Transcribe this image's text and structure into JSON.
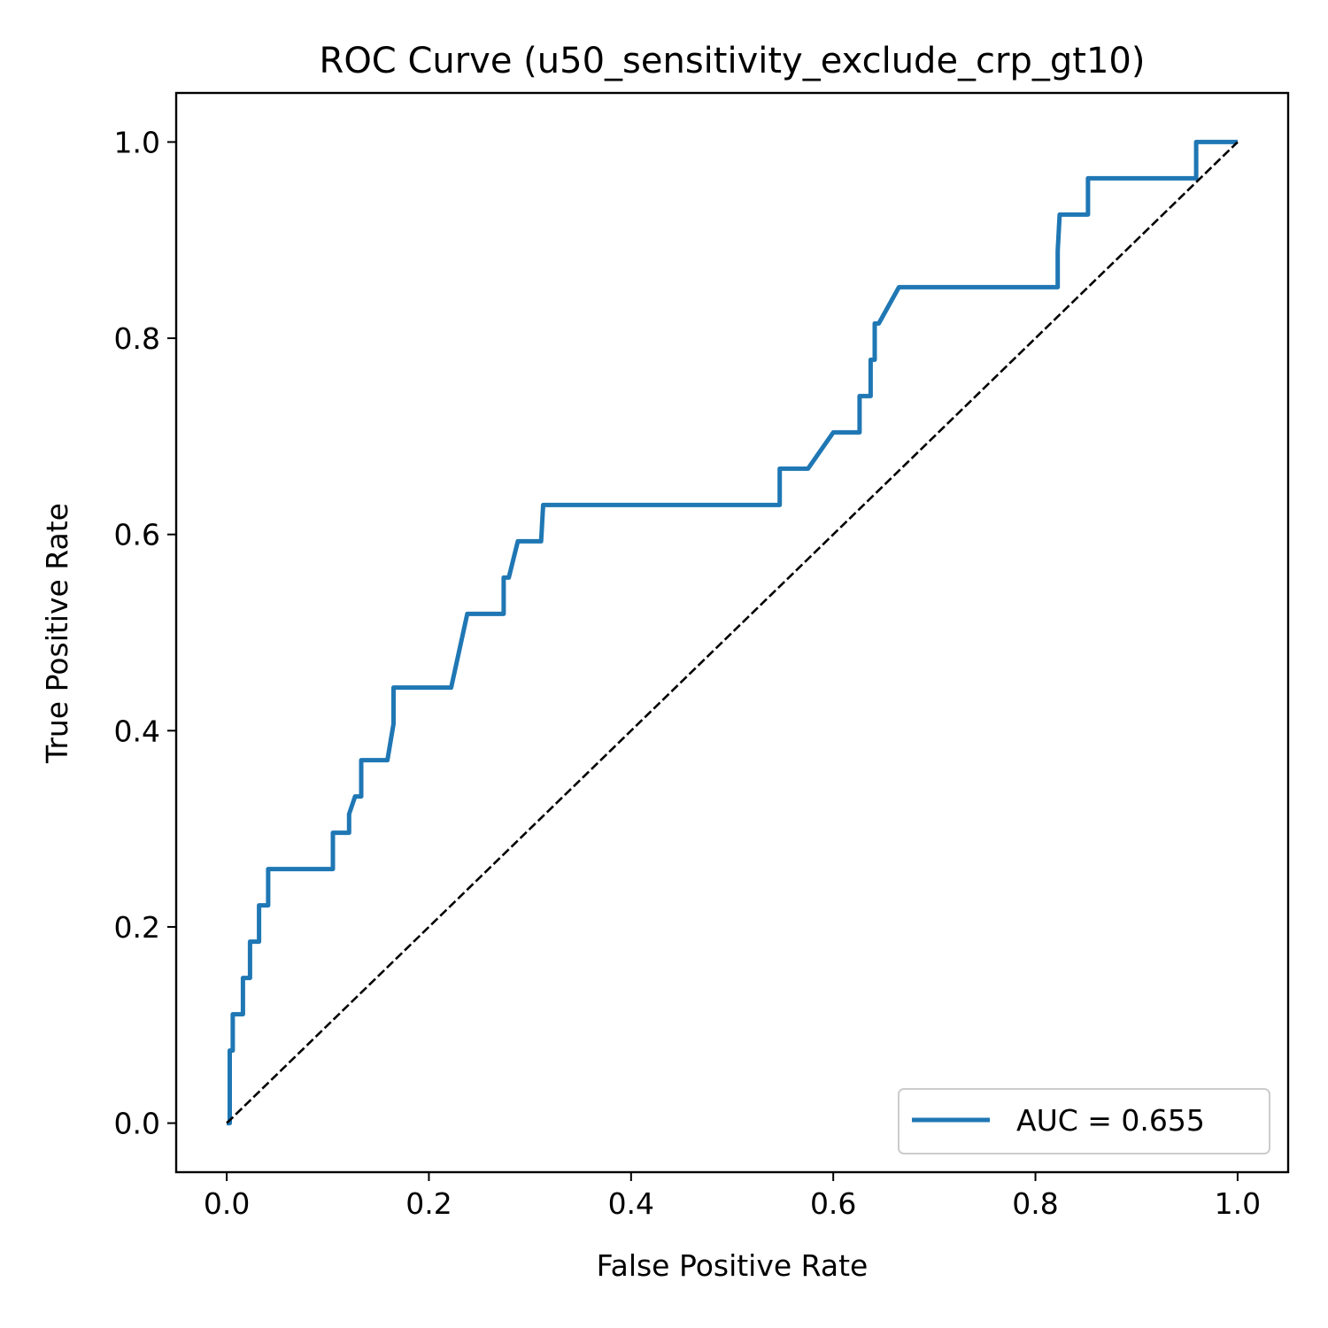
{
  "chart_data": {
    "type": "line",
    "title": "ROC Curve (u50_sensitivity_exclude_crp_gt10)",
    "xlabel": "False Positive Rate",
    "ylabel": "True Positive Rate",
    "xlim": [
      -0.05,
      1.05
    ],
    "ylim": [
      -0.05,
      1.05
    ],
    "xticks": [
      "0.0",
      "0.2",
      "0.4",
      "0.6",
      "0.8",
      "1.0"
    ],
    "yticks": [
      "0.0",
      "0.2",
      "0.4",
      "0.6",
      "0.8",
      "1.0"
    ],
    "legend_position": "lower-right",
    "series": [
      {
        "name": "AUC = 0.655",
        "color": "#1f77b4",
        "style": "solid",
        "x": [
          0.0,
          0.003,
          0.003,
          0.006,
          0.006,
          0.016,
          0.016,
          0.023,
          0.023,
          0.032,
          0.032,
          0.041,
          0.041,
          0.105,
          0.105,
          0.121,
          0.121,
          0.127,
          0.127,
          0.133,
          0.133,
          0.159,
          0.165,
          0.165,
          0.222,
          0.238,
          0.274,
          0.274,
          0.279,
          0.288,
          0.311,
          0.313,
          0.547,
          0.547,
          0.575,
          0.6,
          0.626,
          0.626,
          0.637,
          0.637,
          0.641,
          0.641,
          0.645,
          0.665,
          0.822,
          0.822,
          0.824,
          0.852,
          0.852,
          0.959,
          0.959,
          1.0
        ],
        "y": [
          0.0,
          0.0,
          0.074,
          0.074,
          0.111,
          0.111,
          0.148,
          0.148,
          0.185,
          0.185,
          0.222,
          0.222,
          0.259,
          0.259,
          0.296,
          0.296,
          0.315,
          0.333,
          0.333,
          0.333,
          0.37,
          0.37,
          0.407,
          0.444,
          0.444,
          0.519,
          0.519,
          0.556,
          0.556,
          0.593,
          0.593,
          0.63,
          0.63,
          0.667,
          0.667,
          0.704,
          0.704,
          0.741,
          0.741,
          0.778,
          0.778,
          0.815,
          0.815,
          0.852,
          0.852,
          0.889,
          0.926,
          0.926,
          0.963,
          0.963,
          1.0,
          1.0
        ]
      },
      {
        "name": "",
        "color": "#000000",
        "style": "dashed",
        "x": [
          0.0,
          1.0
        ],
        "y": [
          0.0,
          1.0
        ]
      }
    ]
  }
}
